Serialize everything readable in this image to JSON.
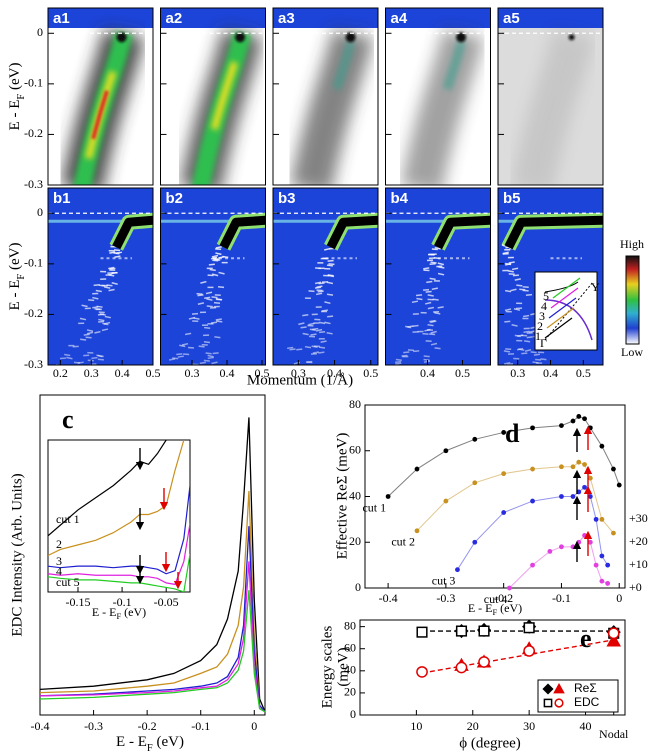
{
  "chart_data": [
    {
      "type": "image-grid",
      "panels_top": [
        "a1",
        "a2",
        "a3",
        "a4",
        "a5"
      ],
      "panels_bottom": [
        "b1",
        "b2",
        "b3",
        "b4",
        "b5"
      ],
      "ylabel": {
        "text": "E - E",
        "sub": "F",
        "unit": " (eV)"
      },
      "xlabel": "Momentum (1/Å)",
      "ylim": [
        -0.3,
        0.05
      ],
      "yticks": [
        0,
        -0.1,
        -0.2,
        -0.3
      ],
      "xlims": [
        [
          0.16,
          0.5
        ],
        [
          0.21,
          0.51
        ],
        [
          0.23,
          0.52
        ],
        [
          0.28,
          0.58
        ],
        [
          0.24,
          0.56
        ]
      ],
      "xticks": [
        [
          0.2,
          0.3,
          0.4,
          0.5
        ],
        [
          0.3,
          0.4,
          0.5
        ],
        [
          0.3,
          0.4,
          0.5
        ],
        [
          0.4,
          0.5
        ],
        [
          0.3,
          0.4,
          0.5
        ]
      ],
      "colorbar": {
        "high": "High",
        "low": "Low"
      },
      "inset": {
        "gamma": "Γ",
        "y": "Y",
        "cuts": [
          "1",
          "2",
          "3",
          "4",
          "5"
        ]
      }
    },
    {
      "type": "line",
      "label": "c",
      "ylabel": "EDC Intensity (Arb. Units)",
      "xlabel": {
        "text": "E - E",
        "sub": "F",
        "unit": "  (eV)"
      },
      "xlim": [
        -0.4,
        0.02
      ],
      "xticks": [
        -0.4,
        -0.3,
        -0.2,
        -0.1,
        0
      ],
      "ylim": [
        0,
        100
      ],
      "x": [
        -0.4,
        -0.3,
        -0.2,
        -0.15,
        -0.1,
        -0.07,
        -0.05,
        -0.03,
        -0.02,
        -0.01,
        0,
        0.01,
        0.02
      ],
      "series": [
        {
          "name": "cut 1",
          "color": "#000000",
          "values": [
            8,
            9,
            11,
            13,
            17,
            22,
            30,
            45,
            67,
            93,
            36,
            5,
            1
          ]
        },
        {
          "name": "2",
          "color": "#c8901e",
          "values": [
            7,
            7.5,
            9,
            10,
            13,
            15,
            19,
            28,
            40,
            70,
            25,
            3,
            1
          ]
        },
        {
          "name": "3",
          "color": "#1f1fd0",
          "values": [
            6,
            6.5,
            7.5,
            8,
            9,
            10,
            12,
            18,
            28,
            59,
            20,
            3,
            1
          ]
        },
        {
          "name": "4",
          "color": "#e020e0",
          "values": [
            6,
            6.3,
            7,
            7.5,
            8.5,
            9,
            11,
            16,
            24,
            48,
            16,
            2,
            1
          ]
        },
        {
          "name": "cut 5",
          "color": "#22cc22",
          "values": [
            5,
            5.5,
            6.5,
            7,
            8,
            8.5,
            10,
            14,
            20,
            39,
            13,
            2,
            1
          ]
        }
      ],
      "inset": {
        "xlim": [
          -0.184,
          -0.023
        ],
        "xticks": [
          -0.15,
          -0.1,
          -0.05
        ],
        "ylim": [
          0,
          100
        ],
        "x": [
          -0.184,
          -0.17,
          -0.15,
          -0.13,
          -0.11,
          -0.09,
          -0.08,
          -0.07,
          -0.06,
          -0.05,
          -0.04,
          -0.03,
          -0.023
        ],
        "series": [
          {
            "color": "#000000",
            "values": [
              37,
              44,
              54,
              62,
              70,
              80,
              86,
              84,
              91,
              100,
              null,
              null,
              null
            ]
          },
          {
            "color": "#c8901e",
            "values": [
              24,
              28,
              31,
              34,
              39,
              46,
              51,
              51,
              53,
              57,
              80,
              100,
              null
            ]
          },
          {
            "color": "#1f1fd0",
            "values": [
              17,
              16,
              17,
              17,
              16,
              17,
              17,
              16,
              15,
              12,
              14,
              35,
              70
            ]
          },
          {
            "color": "#e020e0",
            "values": [
              12,
              11,
              12,
              11,
              11,
              11,
              10,
              10,
              9,
              6,
              5,
              20,
              45
            ]
          },
          {
            "color": "#22cc22",
            "values": [
              10,
              9,
              8,
              8,
              7,
              6,
              6,
              5,
              4,
              3,
              2,
              0,
              25
            ]
          }
        ]
      }
    },
    {
      "type": "scatter",
      "label": "d",
      "ylabel": "Effective ReΣ (meV)",
      "xlabel": {
        "text": "E - E",
        "sub": "F",
        "unit": " (eV)"
      },
      "xlim": [
        -0.44,
        0.01
      ],
      "xticks": [
        -0.4,
        -0.3,
        -0.2,
        -0.1,
        0
      ],
      "ylim": [
        0,
        80
      ],
      "yticks": [
        0,
        20,
        40,
        60,
        80
      ],
      "offset_labels": [
        {
          "value": 30,
          "label": "+30"
        },
        {
          "value": 20,
          "label": "+20"
        },
        {
          "value": 10,
          "label": "+10"
        },
        {
          "value": 0,
          "label": "+0"
        }
      ],
      "series": [
        {
          "name": "cut 1",
          "color": "#000000",
          "x": [
            -0.4,
            -0.35,
            -0.3,
            -0.25,
            -0.2,
            -0.15,
            -0.1,
            -0.08,
            -0.07,
            -0.06,
            -0.05,
            -0.03,
            -0.01,
            0
          ],
          "values": [
            40,
            52,
            60,
            65,
            68,
            70,
            71,
            73,
            75,
            74,
            70,
            62,
            52,
            45
          ]
        },
        {
          "name": "cut 2",
          "color": "#c8901e",
          "x": [
            -0.35,
            -0.3,
            -0.25,
            -0.2,
            -0.15,
            -0.1,
            -0.08,
            -0.07,
            -0.06,
            -0.05,
            -0.03,
            -0.01
          ],
          "values": [
            25,
            38,
            46,
            50,
            52,
            53,
            53,
            55,
            54,
            48,
            30,
            24
          ]
        },
        {
          "name": "cut 3",
          "color": "#2a2ae0",
          "x": [
            -0.28,
            -0.25,
            -0.2,
            -0.15,
            -0.1,
            -0.08,
            -0.07,
            -0.06,
            -0.05,
            -0.04,
            -0.03,
            -0.02
          ],
          "values": [
            8,
            20,
            33,
            38,
            40,
            40,
            42,
            44,
            40,
            30,
            14,
            10
          ]
        },
        {
          "name": "cut 4",
          "color": "#e040e0",
          "x": [
            -0.19,
            -0.15,
            -0.12,
            -0.1,
            -0.08,
            -0.07,
            -0.06,
            -0.05,
            -0.04,
            -0.03,
            -0.02
          ],
          "values": [
            0,
            10,
            16,
            18,
            18,
            20,
            23,
            20,
            10,
            3,
            2
          ]
        }
      ]
    },
    {
      "type": "scatter",
      "label": "e",
      "ylabel": [
        "Energy scales",
        "(meV)"
      ],
      "xlabel": "ϕ (degree)",
      "xlim": [
        0,
        47
      ],
      "xticks": [
        10,
        20,
        30,
        40,
        {
          "value": 45,
          "label": "Nodal"
        }
      ],
      "ylim": [
        0,
        86
      ],
      "yticks": [
        0,
        20,
        40,
        60,
        80
      ],
      "legend": "lower right",
      "series": [
        {
          "name": "ReΣ",
          "color": "#000000",
          "marker": "diamond",
          "x": [
            18,
            22,
            30,
            45
          ],
          "values": [
            76,
            77,
            80,
            75
          ]
        },
        {
          "name": "EDC",
          "color": "#000000",
          "marker": "square",
          "x": [
            11,
            18,
            22,
            30,
            45
          ],
          "values": [
            75,
            76,
            76,
            79,
            74
          ]
        },
        {
          "color": "#e00000",
          "marker": "triangle",
          "x": [
            18,
            22,
            30,
            45
          ],
          "values": [
            45,
            48,
            60,
            67
          ]
        },
        {
          "color": "#e00000",
          "marker": "circle",
          "x": [
            11,
            18,
            22,
            30,
            45
          ],
          "values": [
            39,
            43,
            48,
            58,
            74
          ]
        }
      ],
      "fits": [
        {
          "color": "#000000",
          "x": [
            11,
            45
          ],
          "values": [
            76,
            76
          ]
        },
        {
          "color": "#e00000",
          "x": [
            11,
            45
          ],
          "values": [
            38,
            68
          ]
        }
      ]
    }
  ]
}
